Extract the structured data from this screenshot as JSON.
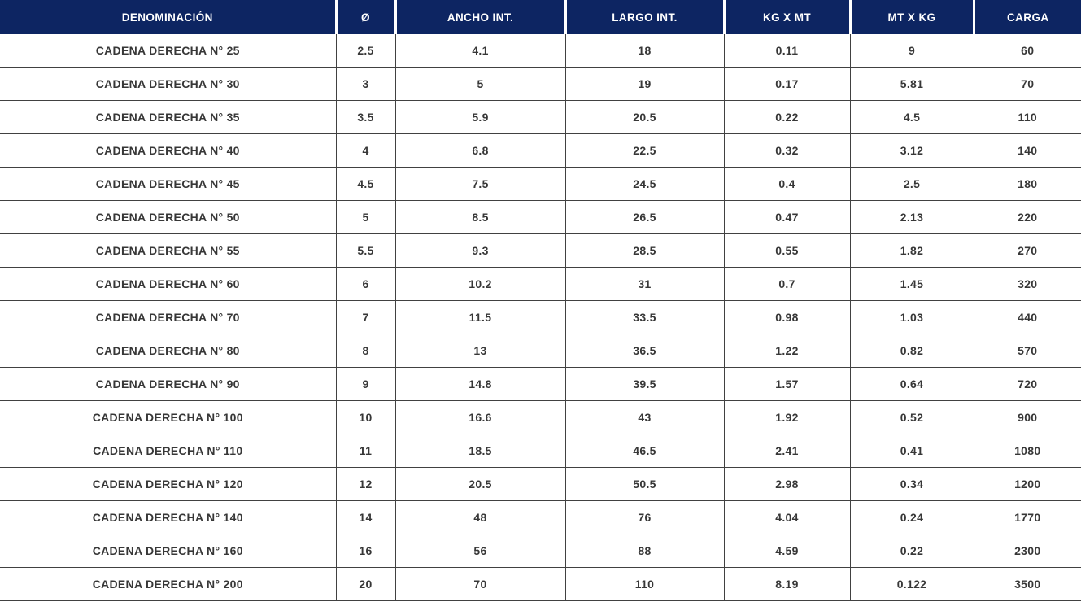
{
  "colors": {
    "header_bg": "#0d2562",
    "header_text": "#ffffff",
    "body_text": "#373737",
    "border": "#414141",
    "row_bg": "#ffffff"
  },
  "table": {
    "columns": [
      "DENOMINACIÓN",
      "Ø",
      "ANCHO INT.",
      "LARGO INT.",
      "KG X MT",
      "MT X KG",
      "CARGA"
    ],
    "rows": [
      [
        "CADENA DERECHA N° 25",
        "2.5",
        "4.1",
        "18",
        "0.11",
        "9",
        "60"
      ],
      [
        "CADENA DERECHA N° 30",
        "3",
        "5",
        "19",
        "0.17",
        "5.81",
        "70"
      ],
      [
        "CADENA DERECHA N° 35",
        "3.5",
        "5.9",
        "20.5",
        "0.22",
        "4.5",
        "110"
      ],
      [
        "CADENA DERECHA N° 40",
        "4",
        "6.8",
        "22.5",
        "0.32",
        "3.12",
        "140"
      ],
      [
        "CADENA DERECHA N° 45",
        "4.5",
        "7.5",
        "24.5",
        "0.4",
        "2.5",
        "180"
      ],
      [
        "CADENA DERECHA N° 50",
        "5",
        "8.5",
        "26.5",
        "0.47",
        "2.13",
        "220"
      ],
      [
        "CADENA DERECHA N° 55",
        "5.5",
        "9.3",
        "28.5",
        "0.55",
        "1.82",
        "270"
      ],
      [
        "CADENA DERECHA N° 60",
        "6",
        "10.2",
        "31",
        "0.7",
        "1.45",
        "320"
      ],
      [
        "CADENA DERECHA N° 70",
        "7",
        "11.5",
        "33.5",
        "0.98",
        "1.03",
        "440"
      ],
      [
        "CADENA DERECHA N° 80",
        "8",
        "13",
        "36.5",
        "1.22",
        "0.82",
        "570"
      ],
      [
        "CADENA DERECHA N° 90",
        "9",
        "14.8",
        "39.5",
        "1.57",
        "0.64",
        "720"
      ],
      [
        "CADENA DERECHA N° 100",
        "10",
        "16.6",
        "43",
        "1.92",
        "0.52",
        "900"
      ],
      [
        "CADENA DERECHA N° 110",
        "11",
        "18.5",
        "46.5",
        "2.41",
        "0.41",
        "1080"
      ],
      [
        "CADENA DERECHA N° 120",
        "12",
        "20.5",
        "50.5",
        "2.98",
        "0.34",
        "1200"
      ],
      [
        "CADENA DERECHA N° 140",
        "14",
        "48",
        "76",
        "4.04",
        "0.24",
        "1770"
      ],
      [
        "CADENA DERECHA N° 160",
        "16",
        "56",
        "88",
        "4.59",
        "0.22",
        "2300"
      ],
      [
        "CADENA DERECHA N° 200",
        "20",
        "70",
        "110",
        "8.19",
        "0.122",
        "3500"
      ]
    ]
  },
  "chart_data": {
    "type": "table",
    "title": "",
    "columns": [
      "DENOMINACIÓN",
      "Ø",
      "ANCHO INT.",
      "LARGO INT.",
      "KG X MT",
      "MT X KG",
      "CARGA"
    ],
    "rows": [
      [
        "CADENA DERECHA N° 25",
        2.5,
        4.1,
        18,
        0.11,
        9,
        60
      ],
      [
        "CADENA DERECHA N° 30",
        3,
        5,
        19,
        0.17,
        5.81,
        70
      ],
      [
        "CADENA DERECHA N° 35",
        3.5,
        5.9,
        20.5,
        0.22,
        4.5,
        110
      ],
      [
        "CADENA DERECHA N° 40",
        4,
        6.8,
        22.5,
        0.32,
        3.12,
        140
      ],
      [
        "CADENA DERECHA N° 45",
        4.5,
        7.5,
        24.5,
        0.4,
        2.5,
        180
      ],
      [
        "CADENA DERECHA N° 50",
        5,
        8.5,
        26.5,
        0.47,
        2.13,
        220
      ],
      [
        "CADENA DERECHA N° 55",
        5.5,
        9.3,
        28.5,
        0.55,
        1.82,
        270
      ],
      [
        "CADENA DERECHA N° 60",
        6,
        10.2,
        31,
        0.7,
        1.45,
        320
      ],
      [
        "CADENA DERECHA N° 70",
        7,
        11.5,
        33.5,
        0.98,
        1.03,
        440
      ],
      [
        "CADENA DERECHA N° 80",
        8,
        13,
        36.5,
        1.22,
        0.82,
        570
      ],
      [
        "CADENA DERECHA N° 90",
        9,
        14.8,
        39.5,
        1.57,
        0.64,
        720
      ],
      [
        "CADENA DERECHA N° 100",
        10,
        16.6,
        43,
        1.92,
        0.52,
        900
      ],
      [
        "CADENA DERECHA N° 110",
        11,
        18.5,
        46.5,
        2.41,
        0.41,
        1080
      ],
      [
        "CADENA DERECHA N° 120",
        12,
        20.5,
        50.5,
        2.98,
        0.34,
        1200
      ],
      [
        "CADENA DERECHA N° 140",
        14,
        48,
        76,
        4.04,
        0.24,
        1770
      ],
      [
        "CADENA DERECHA N° 160",
        16,
        56,
        88,
        4.59,
        0.22,
        2300
      ],
      [
        "CADENA DERECHA N° 200",
        20,
        70,
        110,
        8.19,
        0.122,
        3500
      ]
    ]
  }
}
